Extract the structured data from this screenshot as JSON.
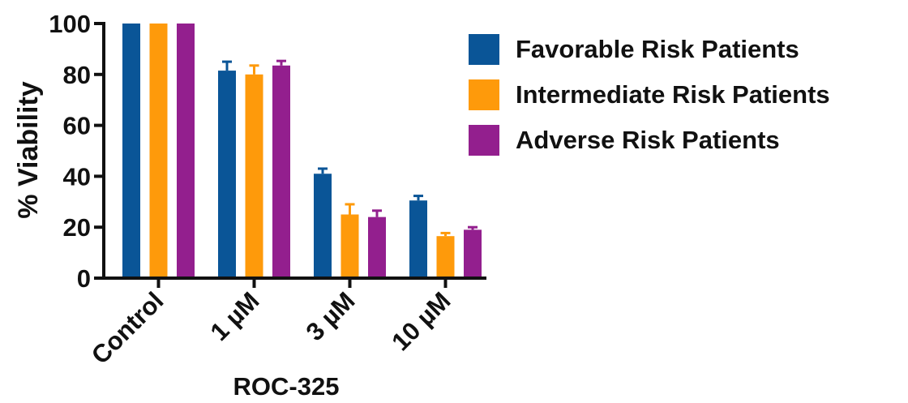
{
  "chart_data": {
    "type": "bar",
    "title": "",
    "xlabel": "ROC-325",
    "ylabel": "% Viability",
    "categories": [
      "Control",
      "1 µM",
      "3 µM",
      "10 µM"
    ],
    "ylim": [
      0,
      100
    ],
    "yticks": [
      0,
      20,
      40,
      60,
      80,
      100
    ],
    "grid": false,
    "legend_position": "right",
    "series": [
      {
        "name": "Favorable Risk Patients",
        "color": "#0a5597",
        "values": [
          100,
          81.5,
          41,
          30.5
        ],
        "errors": [
          0,
          3.5,
          2,
          1.8
        ]
      },
      {
        "name": "Intermediate Risk Patients",
        "color": "#fe9a0b",
        "values": [
          100,
          80,
          25,
          16.5
        ],
        "errors": [
          0,
          3.5,
          4,
          1.2
        ]
      },
      {
        "name": "Adverse Risk Patients",
        "color": "#931f8e",
        "values": [
          100,
          83.5,
          24,
          19
        ],
        "errors": [
          0,
          1.8,
          2.5,
          1
        ]
      }
    ]
  }
}
